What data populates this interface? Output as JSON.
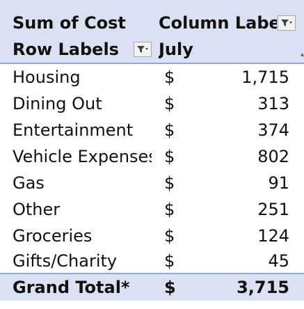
{
  "pivot": {
    "corner_title": "Sum of Cost",
    "column_labels": "Column Labels",
    "row_labels": "Row Labels",
    "column_value": "July",
    "rows": [
      {
        "label": "Housing",
        "currency": "$",
        "amount": "1,715"
      },
      {
        "label": "Dining Out",
        "currency": "$",
        "amount": "313"
      },
      {
        "label": "Entertainment",
        "currency": "$",
        "amount": "374"
      },
      {
        "label": "Vehicle Expenses",
        "currency": "$",
        "amount": "802"
      },
      {
        "label": "Gas",
        "currency": "$",
        "amount": "91"
      },
      {
        "label": "Other",
        "currency": "$",
        "amount": "251"
      },
      {
        "label": "Groceries",
        "currency": "$",
        "amount": "124"
      },
      {
        "label": "Gifts/Charity",
        "currency": "$",
        "amount": "45"
      }
    ],
    "grand_total": {
      "label": "Grand Total*",
      "currency": "$",
      "amount": "3,715"
    }
  },
  "icons": {
    "column_filter": "filter-dropdown-icon",
    "row_filter": "filter-dropdown-icon"
  },
  "colors": {
    "header_fill": "#d9e1f2",
    "header_border": "#8ea9db"
  }
}
